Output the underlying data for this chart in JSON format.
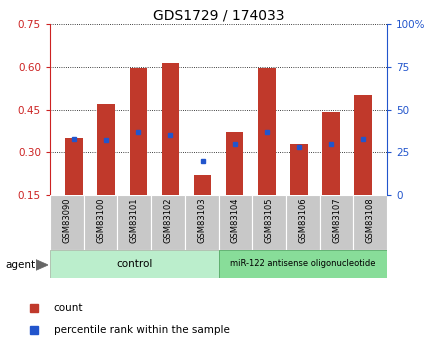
{
  "title": "GDS1729 / 174033",
  "categories": [
    "GSM83090",
    "GSM83100",
    "GSM83101",
    "GSM83102",
    "GSM83103",
    "GSM83104",
    "GSM83105",
    "GSM83106",
    "GSM83107",
    "GSM83108"
  ],
  "red_values": [
    0.35,
    0.47,
    0.595,
    0.615,
    0.22,
    0.37,
    0.595,
    0.33,
    0.44,
    0.5
  ],
  "blue_values": [
    33,
    32,
    37,
    35,
    20,
    30,
    37,
    28,
    30,
    33
  ],
  "ylim_left": [
    0.15,
    0.75
  ],
  "ylim_right": [
    0,
    100
  ],
  "yticks_left": [
    0.15,
    0.3,
    0.45,
    0.6,
    0.75
  ],
  "yticks_right": [
    0,
    25,
    50,
    75,
    100
  ],
  "ytick_labels_right": [
    "0",
    "25",
    "50",
    "75",
    "100%"
  ],
  "bar_color": "#c0392b",
  "dot_color": "#2255cc",
  "bar_width": 0.55,
  "control_label": "control",
  "treatment_label": "miR-122 antisense oligonucleotide",
  "agent_label": "agent",
  "legend_count": "count",
  "legend_percentile": "percentile rank within the sample",
  "tick_bg_color": "#c8c8c8",
  "group_bg_control": "#bbeecc",
  "group_bg_treatment": "#88dd99",
  "title_fontsize": 10,
  "tick_fontsize": 7
}
